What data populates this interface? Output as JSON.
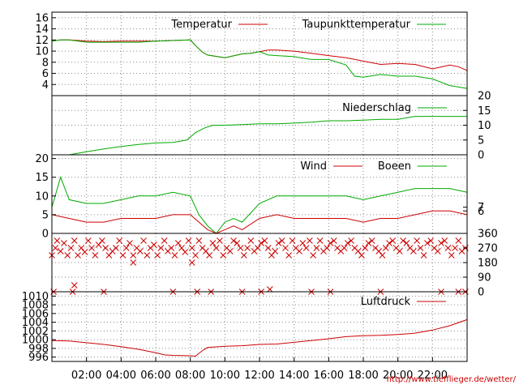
{
  "credit_url": "http://www.tiefflieger.de/wetter/",
  "colors": {
    "red": "#cc0000",
    "green": "#00aa00",
    "olive": "#666600",
    "grid": "#888888"
  },
  "chart_data": [
    {
      "type": "line",
      "panel": "temperature",
      "series": [
        {
          "name": "Temperatur",
          "color": "#cc0000",
          "x": [
            0,
            0.5,
            1,
            2,
            3,
            4,
            5,
            6,
            7,
            8,
            8.3,
            8.7,
            9,
            10,
            11,
            11.5,
            12,
            12.5,
            13,
            14,
            15,
            16,
            17,
            18,
            19,
            20,
            21,
            22,
            23,
            23.5,
            24
          ],
          "y": [
            11.8,
            12.0,
            12.0,
            11.8,
            11.7,
            11.8,
            11.8,
            11.8,
            11.9,
            12.0,
            11.0,
            9.8,
            9.3,
            8.8,
            9.5,
            9.6,
            9.9,
            10.2,
            10.2,
            10.0,
            9.6,
            9.2,
            8.8,
            8.2,
            7.6,
            7.8,
            7.6,
            6.8,
            7.5,
            7.2,
            6.5
          ]
        },
        {
          "name": "Taupunkttemperatur",
          "color": "#00aa00",
          "x": [
            0,
            0.5,
            1,
            2,
            3,
            4,
            5,
            6,
            7,
            8,
            8.3,
            8.7,
            9,
            10,
            11,
            11.5,
            12,
            12.5,
            13,
            14,
            15,
            16,
            17,
            17.5,
            18,
            19,
            20,
            21,
            22,
            23,
            24
          ],
          "y": [
            11.8,
            12.0,
            12.0,
            11.6,
            11.6,
            11.6,
            11.6,
            11.8,
            11.9,
            12.0,
            11.0,
            9.8,
            9.3,
            8.8,
            9.5,
            9.6,
            9.9,
            9.3,
            9.2,
            9.0,
            8.5,
            8.5,
            7.5,
            5.5,
            5.3,
            5.8,
            5.5,
            5.5,
            5.0,
            3.8,
            3.3
          ]
        }
      ],
      "ylim": [
        2,
        17
      ],
      "yticks": [
        4,
        6,
        8,
        10,
        12,
        14,
        16
      ]
    },
    {
      "type": "line",
      "panel": "precipitation",
      "series": [
        {
          "name": "Niederschlag",
          "color": "#00aa00",
          "x": [
            0,
            1,
            2,
            3,
            4,
            5,
            6,
            7,
            7.8,
            8.3,
            8.8,
            9.3,
            10,
            11,
            12,
            13,
            14,
            15,
            16,
            17,
            18,
            19,
            20,
            20.5,
            21,
            22,
            23,
            24
          ],
          "y": [
            0,
            0,
            1.0,
            2.0,
            2.8,
            3.5,
            4.0,
            4.2,
            5.0,
            7.5,
            9.0,
            10.0,
            10.0,
            10.2,
            10.5,
            10.5,
            10.7,
            11.0,
            11.5,
            11.5,
            11.7,
            12.0,
            12.0,
            12.5,
            13.0,
            13.0,
            13.0,
            13.0
          ]
        }
      ],
      "ylim": [
        0,
        20
      ],
      "yticks": [
        0,
        5,
        10,
        15,
        20
      ]
    },
    {
      "type": "line",
      "panel": "wind",
      "series": [
        {
          "name": "Wind",
          "color": "#cc0000",
          "x": [
            0,
            1,
            2,
            3,
            4,
            5,
            6,
            7,
            8,
            8.5,
            9,
            9.5,
            10,
            10.5,
            11,
            12,
            13,
            14,
            15,
            16,
            17,
            18,
            19,
            20,
            21,
            22,
            23,
            24
          ],
          "y": [
            5,
            4,
            3,
            3,
            4,
            4,
            4,
            5,
            5,
            3,
            1,
            0,
            1,
            2,
            1,
            4,
            5,
            4,
            4,
            4,
            4,
            3,
            4,
            4,
            5,
            6,
            6,
            5
          ]
        },
        {
          "name": "Boeen",
          "color": "#00aa00",
          "x": [
            0,
            0.5,
            1,
            2,
            3,
            4,
            5,
            6,
            7,
            8,
            8.5,
            9,
            9.5,
            10,
            10.5,
            11,
            12,
            13,
            14,
            15,
            16,
            17,
            18,
            19,
            20,
            21,
            22,
            23,
            24
          ],
          "y": [
            7,
            15,
            9,
            8,
            8,
            9,
            10,
            10,
            11,
            10,
            5,
            2,
            0,
            3,
            4,
            3,
            8,
            10,
            10,
            10,
            10,
            10,
            9,
            10,
            11,
            12,
            12,
            12,
            11
          ]
        }
      ],
      "ylim": [
        0,
        21
      ],
      "yticks_left": [
        0,
        5,
        10,
        15,
        20
      ],
      "yticks_right": [
        6,
        7
      ]
    },
    {
      "type": "scatter",
      "panel": "wind-direction",
      "marker": "x",
      "color": "#cc0000",
      "x": [
        0,
        0.2,
        0.3,
        0.5,
        0.7,
        0.9,
        1.1,
        1.3,
        1.5,
        1.7,
        1.9,
        2.1,
        2.3,
        2.5,
        2.7,
        2.9,
        3.1,
        3.3,
        3.5,
        3.7,
        3.9,
        4.1,
        4.3,
        4.5,
        4.7,
        4.9,
        5.1,
        5.3,
        5.5,
        5.7,
        5.9,
        6.1,
        6.3,
        6.5,
        6.7,
        6.9,
        7.1,
        7.3,
        7.5,
        7.7,
        7.9,
        8.1,
        8.3,
        8.5,
        8.7,
        8.9,
        9.1,
        9.3,
        9.5,
        9.7,
        9.9,
        10.1,
        10.3,
        10.5,
        10.7,
        10.9,
        11.1,
        11.3,
        11.5,
        11.7,
        11.9,
        12.1,
        12.3,
        12.5,
        12.7,
        12.9,
        13.1,
        13.3,
        13.5,
        13.7,
        13.9,
        14.1,
        14.3,
        14.5,
        14.7,
        14.9,
        15.1,
        15.3,
        15.5,
        15.7,
        15.9,
        16.1,
        16.3,
        16.5,
        16.7,
        16.9,
        17.1,
        17.3,
        17.5,
        17.7,
        17.9,
        18.1,
        18.3,
        18.5,
        18.7,
        18.9,
        19.1,
        19.3,
        19.5,
        19.7,
        19.9,
        20.1,
        20.3,
        20.5,
        20.7,
        20.9,
        21.1,
        21.3,
        21.5,
        21.7,
        21.9,
        22.1,
        22.3,
        22.5,
        22.7,
        22.9,
        23.1,
        23.3,
        23.5,
        23.7,
        23.9,
        1.3,
        4.7,
        8.1,
        8.4,
        12.1,
        12.6,
        16.1,
        22.5,
        23.9,
        0.1,
        1.2,
        3.0,
        7.0,
        9.2,
        11.0,
        15.0,
        19.0,
        23.5
      ],
      "y": [
        225,
        270,
        315,
        250,
        300,
        225,
        270,
        315,
        225,
        270,
        245,
        315,
        270,
        225,
        290,
        315,
        270,
        225,
        250,
        270,
        315,
        225,
        270,
        300,
        225,
        270,
        250,
        315,
        225,
        270,
        290,
        225,
        270,
        315,
        250,
        270,
        225,
        300,
        270,
        245,
        315,
        270,
        225,
        315,
        270,
        250,
        225,
        300,
        270,
        315,
        225,
        270,
        250,
        315,
        300,
        270,
        225,
        270,
        315,
        250,
        270,
        300,
        315,
        270,
        225,
        250,
        300,
        315,
        270,
        225,
        315,
        270,
        250,
        300,
        270,
        315,
        225,
        270,
        315,
        250,
        270,
        300,
        315,
        270,
        250,
        270,
        300,
        315,
        270,
        250,
        225,
        270,
        300,
        315,
        270,
        250,
        225,
        270,
        300,
        315,
        270,
        250,
        315,
        300,
        270,
        250,
        315,
        270,
        225,
        300,
        315,
        270,
        250,
        300,
        315,
        270,
        225,
        270,
        315,
        250,
        270,
        40,
        180,
        180,
        0,
        0,
        15,
        0,
        0,
        0,
        0,
        0,
        0,
        0,
        0,
        0,
        0,
        0,
        0
      ],
      "ylim": [
        0,
        360
      ],
      "yticks_right": [
        0,
        90,
        180,
        270,
        360
      ]
    },
    {
      "type": "line",
      "panel": "pressure",
      "series": [
        {
          "name": "Luftdruck",
          "color": "#cc0000",
          "x": [
            0,
            1,
            2,
            3,
            4,
            5,
            6,
            6.5,
            7,
            8,
            8.3,
            8.7,
            9,
            10,
            11,
            12,
            13,
            14,
            15,
            16,
            17,
            18,
            19,
            20,
            21,
            22,
            23,
            24
          ],
          "y": [
            999.8,
            999.7,
            999.3,
            998.9,
            998.4,
            997.8,
            997.0,
            996.5,
            996.4,
            996.3,
            996.2,
            997.5,
            998.2,
            998.5,
            998.6,
            998.9,
            999.0,
            999.4,
            999.8,
            1000.2,
            1000.7,
            1000.9,
            1001.0,
            1001.2,
            1001.5,
            1002.2,
            1003.2,
            1004.6
          ]
        }
      ],
      "ylim": [
        995,
        1011
      ],
      "yticks": [
        996,
        998,
        1000,
        1002,
        1004,
        1006,
        1008,
        1010
      ]
    }
  ],
  "x_axis": {
    "min": 0,
    "max": 24,
    "ticks": [
      2,
      4,
      6,
      8,
      10,
      12,
      14,
      16,
      18,
      20,
      22
    ],
    "tick_labels": [
      "02:00",
      "04:00",
      "06:00",
      "08:00",
      "10:00",
      "12:00",
      "14:00",
      "16:00",
      "18:00",
      "20:00",
      "22:00"
    ]
  }
}
